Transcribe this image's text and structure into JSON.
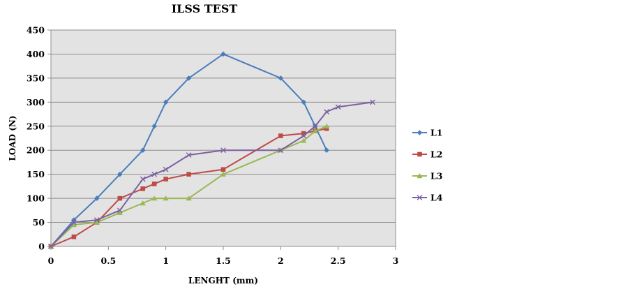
{
  "chart_data": {
    "type": "line",
    "title": "ILSS TEST",
    "xlabel": "LENGHT (mm)",
    "ylabel": "LOAD (N)",
    "xlim": [
      0,
      3
    ],
    "ylim": [
      0,
      450
    ],
    "xticks": [
      0,
      0.5,
      1,
      1.5,
      2,
      2.5,
      3
    ],
    "xtick_labels": [
      "0",
      "0.5",
      "1",
      "1.5",
      "2",
      "2.5",
      "3"
    ],
    "yticks": [
      0,
      50,
      100,
      150,
      200,
      250,
      300,
      350,
      400,
      450
    ],
    "ytick_labels": [
      "0",
      "50",
      "100",
      "150",
      "200",
      "250",
      "300",
      "350",
      "400",
      "450"
    ],
    "grid": "horizontal",
    "plot_background": "#e3e3e3",
    "legend_position": "right",
    "series": [
      {
        "name": "L1",
        "color": "#4a7ebb",
        "marker": "diamond",
        "x": [
          0,
          0.2,
          0.4,
          0.6,
          0.8,
          0.9,
          1.0,
          1.2,
          1.5,
          2.0,
          2.2,
          2.3,
          2.4
        ],
        "y": [
          0,
          55,
          100,
          150,
          200,
          250,
          300,
          350,
          400,
          350,
          300,
          250,
          200
        ]
      },
      {
        "name": "L2",
        "color": "#be4b48",
        "marker": "square",
        "x": [
          0,
          0.2,
          0.4,
          0.6,
          0.8,
          0.9,
          1.0,
          1.2,
          1.5,
          2.0,
          2.2,
          2.3,
          2.4
        ],
        "y": [
          0,
          20,
          50,
          100,
          120,
          130,
          140,
          150,
          160,
          230,
          235,
          240,
          245
        ]
      },
      {
        "name": "L3",
        "color": "#98b954",
        "marker": "triangle",
        "x": [
          0,
          0.2,
          0.4,
          0.6,
          0.8,
          0.9,
          1.0,
          1.2,
          1.5,
          2.0,
          2.2,
          2.3,
          2.4
        ],
        "y": [
          0,
          45,
          50,
          70,
          90,
          100,
          100,
          100,
          150,
          200,
          220,
          240,
          250
        ]
      },
      {
        "name": "L4",
        "color": "#7d60a0",
        "marker": "x",
        "x": [
          0,
          0.2,
          0.4,
          0.6,
          0.8,
          0.9,
          1.0,
          1.2,
          1.5,
          2.0,
          2.2,
          2.3,
          2.4,
          2.5,
          2.8
        ],
        "y": [
          0,
          50,
          55,
          75,
          140,
          150,
          160,
          190,
          200,
          200,
          230,
          250,
          280,
          290,
          300
        ]
      }
    ]
  }
}
